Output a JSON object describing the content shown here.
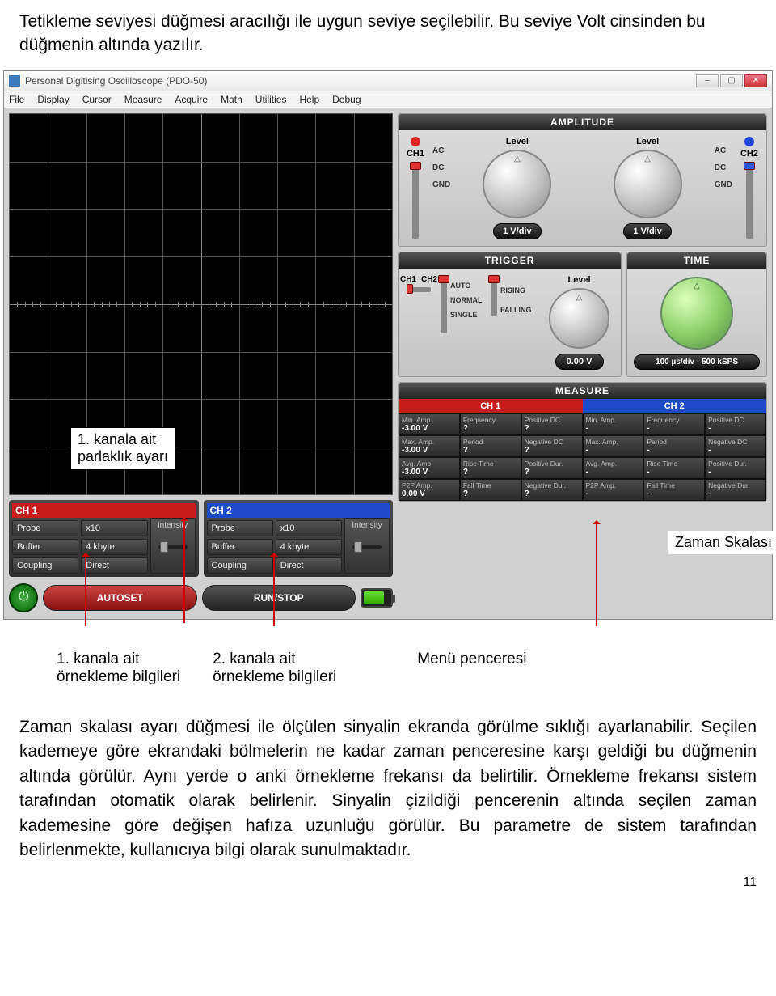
{
  "doc": {
    "intro": "Tetikleme seviyesi düğmesi aracılığı ile uygun seviye seçilebilir. Bu seviye Volt cinsinden bu düğmenin altında yazılır.",
    "callout1_l1": "1. kanala ait",
    "callout1_l2": "parlaklık ayarı",
    "zaman_skalasi": "Zaman Skalası",
    "lbl1_l1": "1. kanala ait",
    "lbl1_l2": "örnekleme bilgileri",
    "lbl2_l1": "2. kanala ait",
    "lbl2_l2": "örnekleme bilgileri",
    "lbl3": "Menü penceresi",
    "para2": "Zaman skalası ayarı düğmesi ile ölçülen sinyalin ekranda görülme sıklığı ayarlanabilir. Seçilen kademeye göre ekrandaki bölmelerin ne kadar zaman penceresine karşı geldiği bu düğmenin altında görülür. Aynı yerde o anki örnekleme frekansı da belirtilir. Örnekleme frekansı sistem tarafından otomatik olarak belirlenir. Sinyalin çizildiği pencerenin altında seçilen zaman kademesine göre değişen hafıza uzunluğu görülür. Bu parametre de sistem tarafından belirlenmekte, kullanıcıya bilgi olarak sunulmaktadır.",
    "page": "11"
  },
  "win": {
    "title": "Personal Digitising Oscilloscope (PDO-50)",
    "menu": [
      "File",
      "Display",
      "Cursor",
      "Measure",
      "Acquire",
      "Math",
      "Utilities",
      "Help",
      "Debug"
    ]
  },
  "ch_panels": {
    "ch1": {
      "title": "CH 1",
      "rows": [
        [
          "Probe",
          "x10"
        ],
        [
          "Buffer",
          "4 kbyte"
        ],
        [
          "Coupling",
          "Direct"
        ]
      ]
    },
    "ch2": {
      "title": "CH 2",
      "rows": [
        [
          "Probe",
          "x10"
        ],
        [
          "Buffer",
          "4 kbyte"
        ],
        [
          "Coupling",
          "Direct"
        ]
      ]
    },
    "intensity": "Intensity"
  },
  "buttons": {
    "autoset": "AUTOSET",
    "runstop": "RUN/STOP"
  },
  "amp": {
    "title": "AMPLITUDE",
    "ch1": "CH1",
    "ch2": "CH2",
    "level": "Level",
    "coup": [
      "AC",
      "DC",
      "GND"
    ],
    "v1": "1 V/div",
    "v2": "1 V/div"
  },
  "trig": {
    "title": "TRIGGER",
    "ch1": "CH1",
    "ch2": "CH2",
    "level": "Level",
    "modes": [
      "AUTO",
      "NORMAL",
      "SINGLE"
    ],
    "edges": [
      "RISING",
      "FALLING"
    ],
    "val": "0.00 V"
  },
  "time": {
    "title": "TIME",
    "val": "100 µs/div - 500 kSPS"
  },
  "meas": {
    "title": "MEASURE",
    "ch1_hdr": "CH 1",
    "ch2_hdr": "CH 2",
    "labels": [
      "Min. Amp.",
      "Frequency",
      "Positive DC",
      "Max. Amp.",
      "Period",
      "Negative DC",
      "Avg. Amp.",
      "Rise Time",
      "Positive Dur.",
      "P2P Amp.",
      "Fall Time",
      "Negative Dur."
    ],
    "ch1_vals": [
      "-3.00 V",
      "?",
      "?",
      "-3.00 V",
      "?",
      "?",
      "-3.00 V",
      "?",
      "?",
      "0.00 V",
      "?",
      "?"
    ],
    "ch2_vals": [
      "-",
      "-",
      "-",
      "-",
      "-",
      "-",
      "-",
      "-",
      "-",
      "-",
      "-",
      "-"
    ]
  }
}
